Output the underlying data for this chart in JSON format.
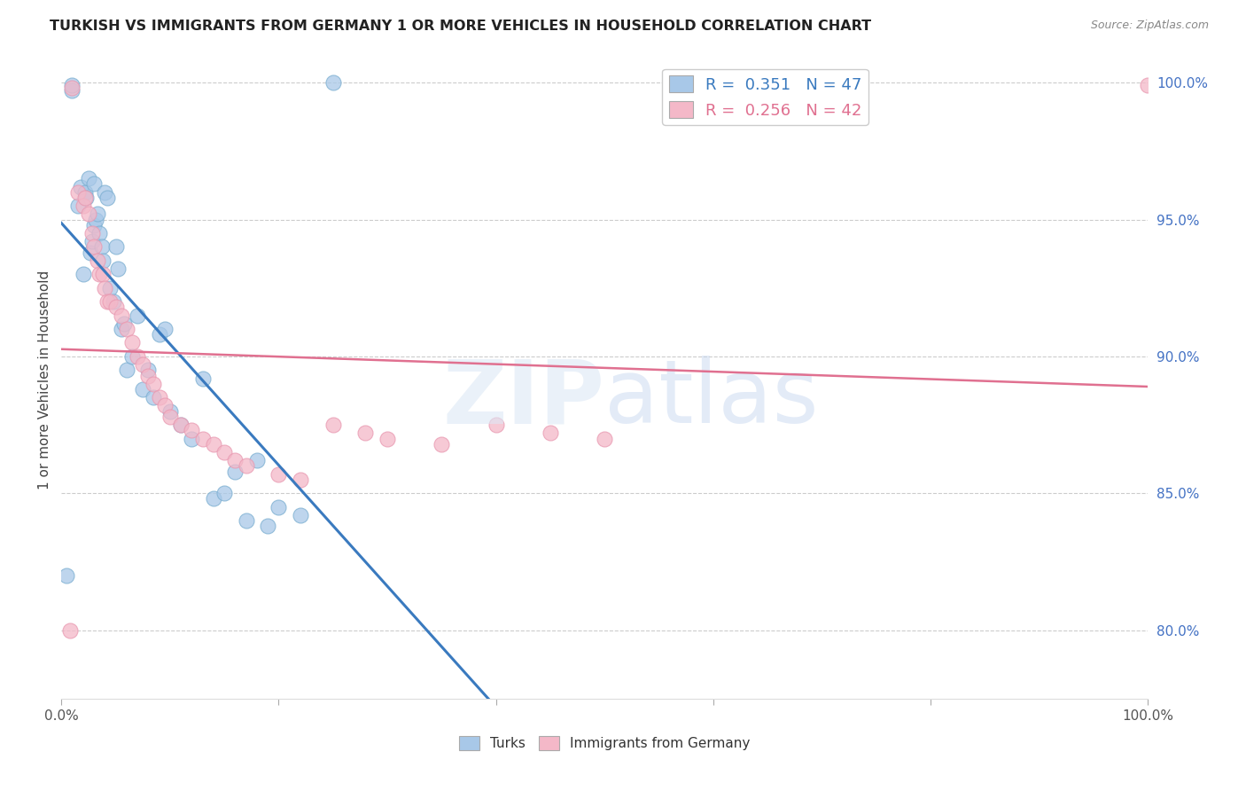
{
  "title": "TURKISH VS IMMIGRANTS FROM GERMANY 1 OR MORE VEHICLES IN HOUSEHOLD CORRELATION CHART",
  "source": "Source: ZipAtlas.com",
  "ylabel": "1 or more Vehicles in Household",
  "xlim": [
    0,
    1
  ],
  "ylim": [
    0.775,
    1.008
  ],
  "yticks": [
    0.8,
    0.85,
    0.9,
    0.95,
    1.0
  ],
  "ytick_labels": [
    "80.0%",
    "85.0%",
    "90.0%",
    "95.0%",
    "100.0%"
  ],
  "turks_color": "#a8c8e8",
  "immigrants_color": "#f4b8c8",
  "turks_line_color": "#3a7abf",
  "immigrants_line_color": "#e07090",
  "R_turks": 0.351,
  "N_turks": 47,
  "R_immigrants": 0.256,
  "N_immigrants": 42,
  "turks_x": [
    0.005,
    0.01,
    0.01,
    0.015,
    0.018,
    0.02,
    0.022,
    0.023,
    0.025,
    0.027,
    0.028,
    0.03,
    0.03,
    0.032,
    0.033,
    0.035,
    0.037,
    0.038,
    0.04,
    0.042,
    0.045,
    0.048,
    0.05,
    0.052,
    0.055,
    0.058,
    0.06,
    0.065,
    0.07,
    0.075,
    0.08,
    0.085,
    0.09,
    0.095,
    0.1,
    0.11,
    0.12,
    0.13,
    0.14,
    0.15,
    0.16,
    0.17,
    0.18,
    0.19,
    0.2,
    0.22,
    0.25
  ],
  "turks_y": [
    0.82,
    0.997,
    0.999,
    0.955,
    0.962,
    0.93,
    0.96,
    0.958,
    0.965,
    0.938,
    0.942,
    0.963,
    0.948,
    0.95,
    0.952,
    0.945,
    0.94,
    0.935,
    0.96,
    0.958,
    0.925,
    0.92,
    0.94,
    0.932,
    0.91,
    0.912,
    0.895,
    0.9,
    0.915,
    0.888,
    0.895,
    0.885,
    0.908,
    0.91,
    0.88,
    0.875,
    0.87,
    0.892,
    0.848,
    0.85,
    0.858,
    0.84,
    0.862,
    0.838,
    0.845,
    0.842,
    1.0
  ],
  "immigrants_x": [
    0.008,
    0.01,
    0.015,
    0.02,
    0.022,
    0.025,
    0.028,
    0.03,
    0.033,
    0.035,
    0.038,
    0.04,
    0.042,
    0.045,
    0.05,
    0.055,
    0.06,
    0.065,
    0.07,
    0.075,
    0.08,
    0.085,
    0.09,
    0.095,
    0.1,
    0.11,
    0.12,
    0.13,
    0.14,
    0.15,
    0.16,
    0.17,
    0.2,
    0.22,
    0.25,
    0.28,
    0.3,
    0.35,
    0.4,
    0.45,
    0.5,
    1.0
  ],
  "immigrants_y": [
    0.8,
    0.998,
    0.96,
    0.955,
    0.958,
    0.952,
    0.945,
    0.94,
    0.935,
    0.93,
    0.93,
    0.925,
    0.92,
    0.92,
    0.918,
    0.915,
    0.91,
    0.905,
    0.9,
    0.897,
    0.893,
    0.89,
    0.885,
    0.882,
    0.878,
    0.875,
    0.873,
    0.87,
    0.868,
    0.865,
    0.862,
    0.86,
    0.857,
    0.855,
    0.875,
    0.872,
    0.87,
    0.868,
    0.875,
    0.872,
    0.87,
    0.999
  ],
  "background_color": "#ffffff",
  "grid_color": "#cccccc"
}
